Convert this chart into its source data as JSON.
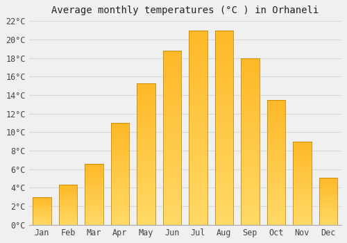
{
  "title": "Average monthly temperatures (°C ) in Orhaneli",
  "months": [
    "Jan",
    "Feb",
    "Mar",
    "Apr",
    "May",
    "Jun",
    "Jul",
    "Aug",
    "Sep",
    "Oct",
    "Nov",
    "Dec"
  ],
  "values": [
    3.0,
    4.3,
    6.6,
    11.0,
    15.3,
    18.8,
    21.0,
    21.0,
    18.0,
    13.5,
    9.0,
    5.1
  ],
  "bar_color": "#FDB827",
  "bar_color_light": "#FFD966",
  "bar_color_dark": "#F0A500",
  "bar_edge_color": "#C8880A",
  "ylim": [
    0,
    22
  ],
  "yticks": [
    0,
    2,
    4,
    6,
    8,
    10,
    12,
    14,
    16,
    18,
    20,
    22
  ],
  "ytick_labels": [
    "0°C",
    "2°C",
    "4°C",
    "6°C",
    "8°C",
    "10°C",
    "12°C",
    "14°C",
    "16°C",
    "18°C",
    "20°C",
    "22°C"
  ],
  "background_color": "#f0f0f0",
  "grid_color": "#d8d8d8",
  "title_fontsize": 10,
  "tick_fontsize": 8.5,
  "bar_width": 0.7
}
